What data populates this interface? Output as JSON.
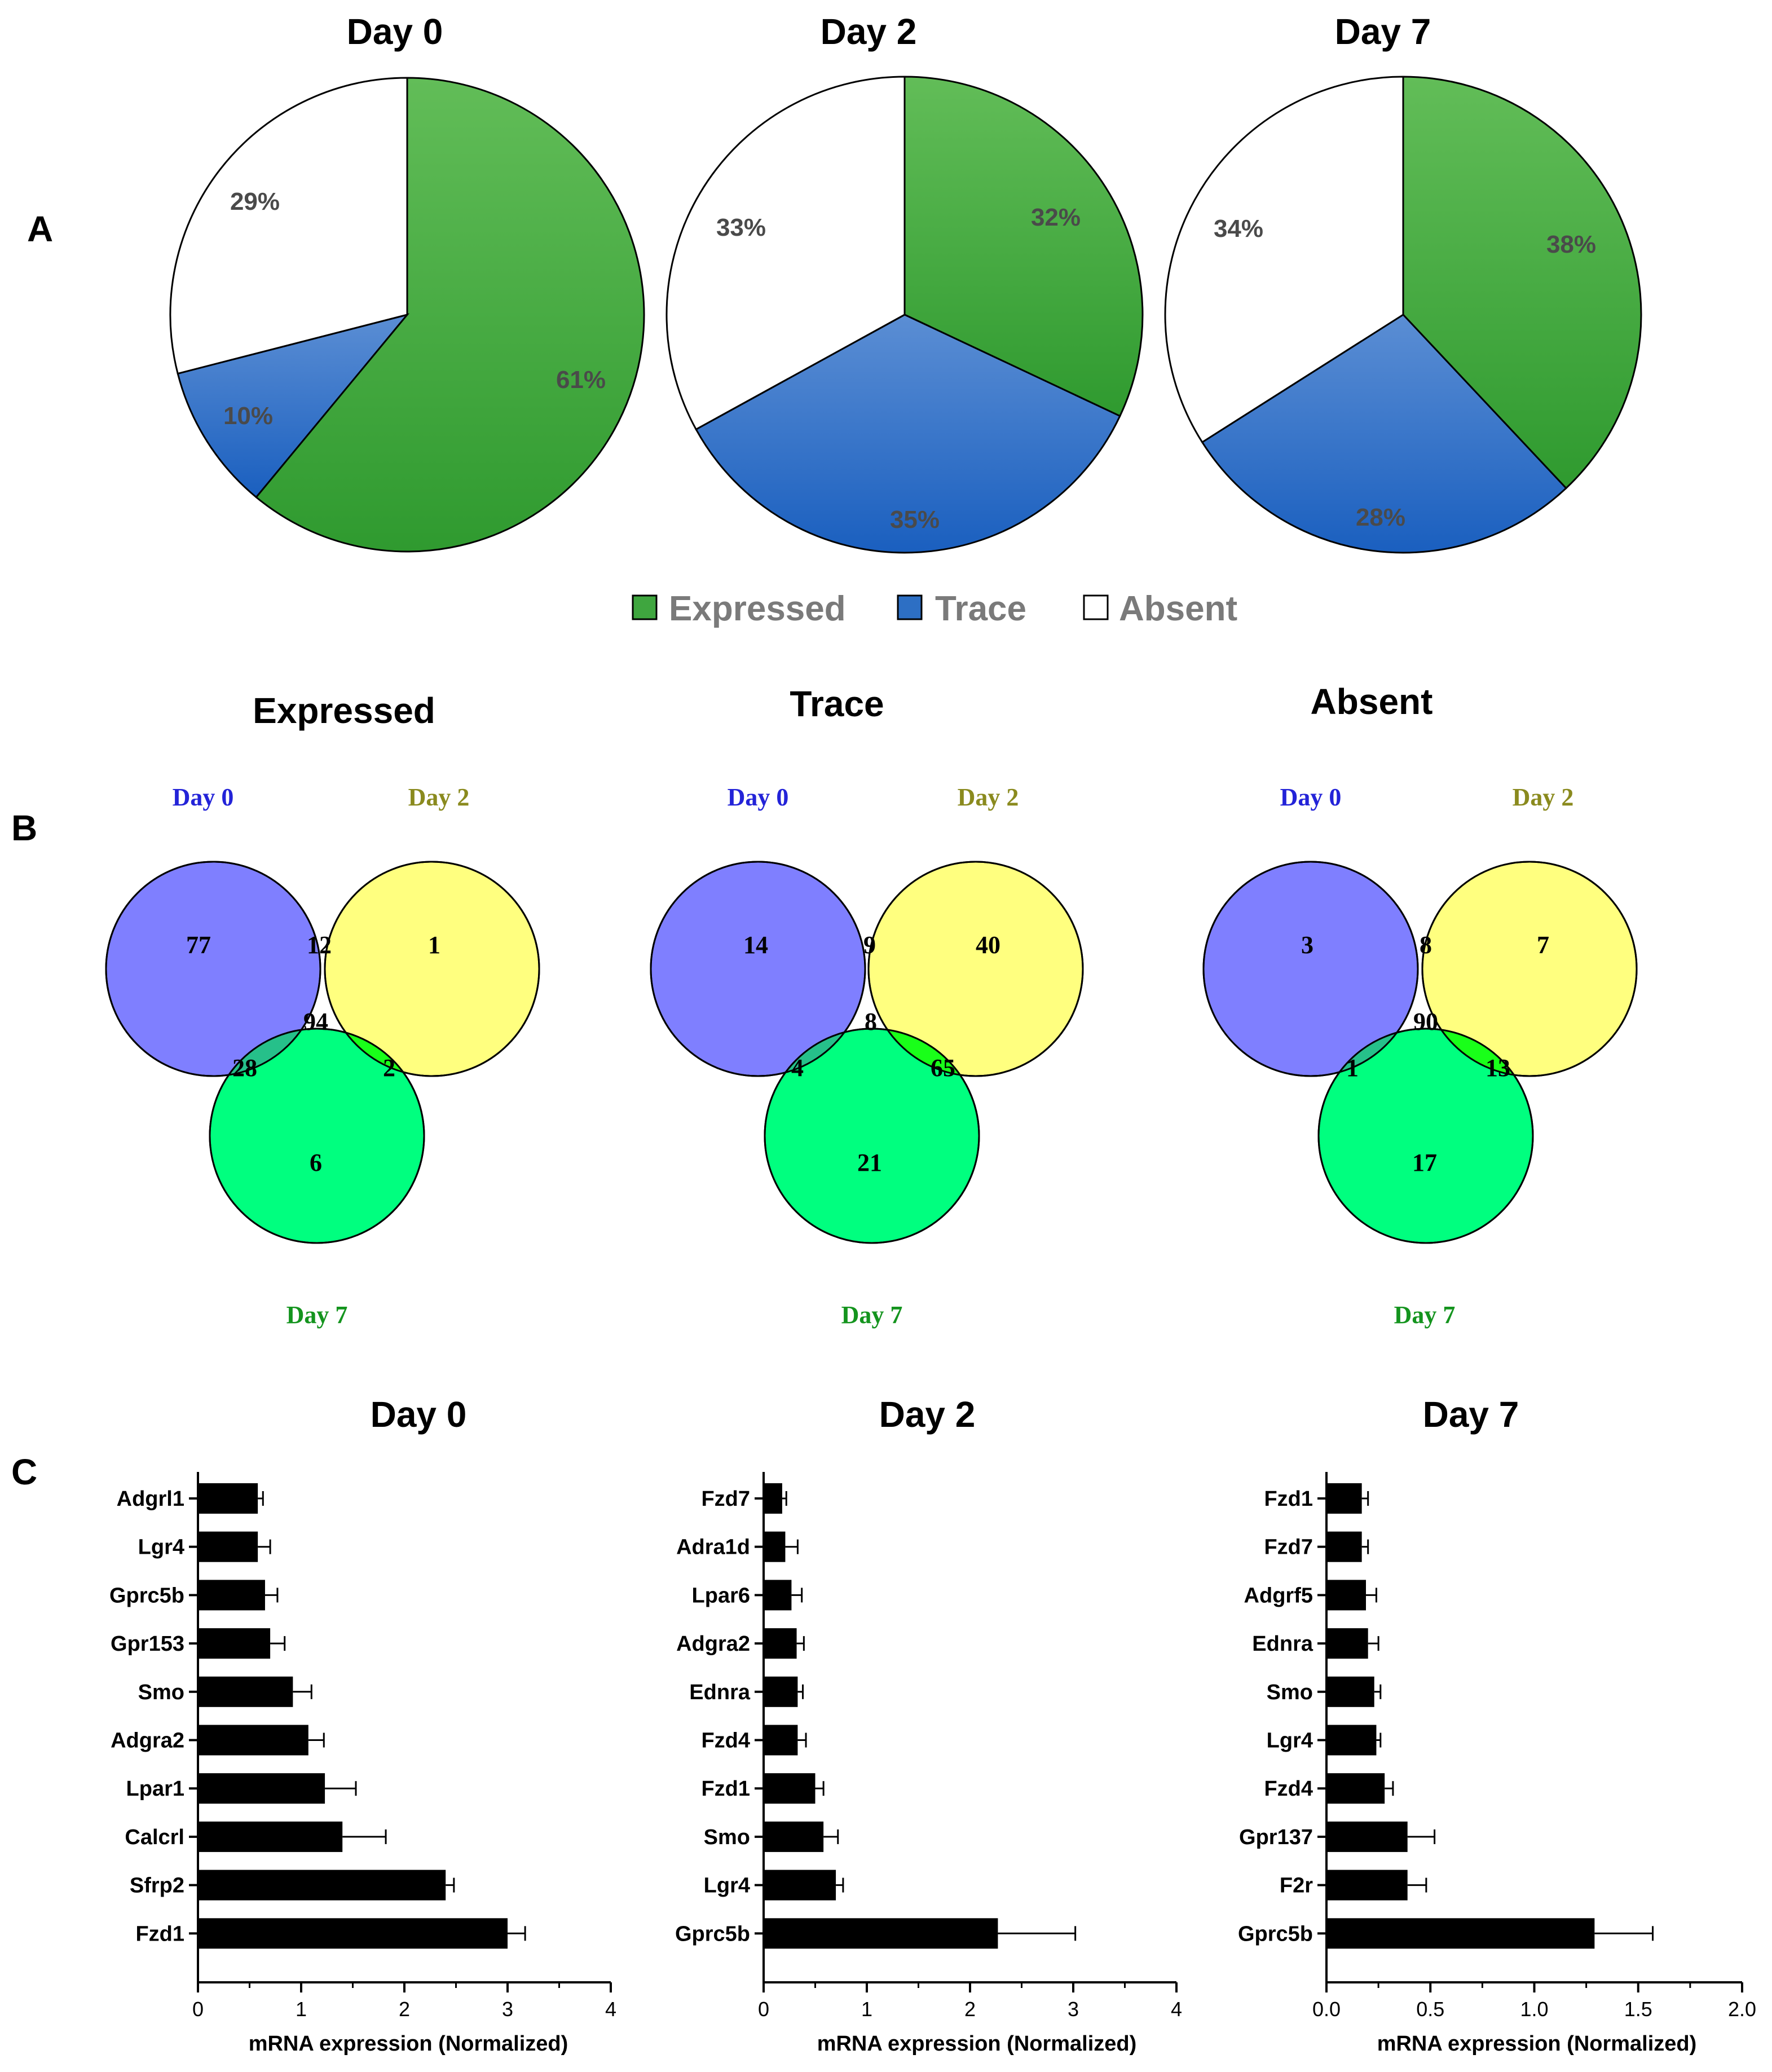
{
  "panels": {
    "a": "A",
    "b": "B",
    "c": "C"
  },
  "legend": {
    "items": [
      {
        "label": "Expressed",
        "color": "#3fa63f"
      },
      {
        "label": "Trace",
        "color": "#2d6fc4"
      },
      {
        "label": "Absent",
        "color": "#ffffff"
      }
    ]
  },
  "chart_data": [
    {
      "type": "pie",
      "title": "Day 0",
      "slices": [
        {
          "label": "Expressed",
          "value": 61,
          "text": "61%"
        },
        {
          "label": "Trace",
          "value": 10,
          "text": "10%"
        },
        {
          "label": "Absent",
          "value": 29,
          "text": "29%"
        }
      ]
    },
    {
      "type": "pie",
      "title": "Day 2",
      "slices": [
        {
          "label": "Expressed",
          "value": 32,
          "text": "32%"
        },
        {
          "label": "Trace",
          "value": 35,
          "text": "35%"
        },
        {
          "label": "Absent",
          "value": 33,
          "text": "33%"
        }
      ]
    },
    {
      "type": "pie",
      "title": "Day 7",
      "slices": [
        {
          "label": "Expressed",
          "value": 38,
          "text": "38%"
        },
        {
          "label": "Trace",
          "value": 28,
          "text": "28%"
        },
        {
          "label": "Absent",
          "value": 34,
          "text": "34%"
        }
      ]
    },
    {
      "type": "venn",
      "title": "Expressed",
      "sets": [
        {
          "name": "Day 0",
          "color": "#7f7fff",
          "text_color": "#2323d8"
        },
        {
          "name": "Day 2",
          "color": "#ffff7f",
          "text_color": "#8a8a1e"
        },
        {
          "name": "Day 7",
          "color": "#00ff7f",
          "text_color": "#14941e"
        }
      ],
      "regions": {
        "only_0": 77,
        "only_2": 1,
        "only_7": 6,
        "d0_d2": 12,
        "d0_d7": 28,
        "d2_d7": 2,
        "all": 94
      }
    },
    {
      "type": "venn",
      "title": "Trace",
      "sets": [
        {
          "name": "Day 0",
          "color": "#7f7fff",
          "text_color": "#2323d8"
        },
        {
          "name": "Day 2",
          "color": "#ffff7f",
          "text_color": "#8a8a1e"
        },
        {
          "name": "Day 7",
          "color": "#00ff7f",
          "text_color": "#14941e"
        }
      ],
      "regions": {
        "only_0": 14,
        "only_2": 40,
        "only_7": 21,
        "d0_d2": 9,
        "d0_d7": 4,
        "d2_d7": 65,
        "all": 8
      }
    },
    {
      "type": "venn",
      "title": "Absent",
      "sets": [
        {
          "name": "Day 0",
          "color": "#7f7fff",
          "text_color": "#2323d8"
        },
        {
          "name": "Day 2",
          "color": "#ffff7f",
          "text_color": "#8a8a1e"
        },
        {
          "name": "Day 7",
          "color": "#00ff7f",
          "text_color": "#14941e"
        }
      ],
      "regions": {
        "only_0": 3,
        "only_2": 7,
        "only_7": 17,
        "d0_d2": 8,
        "d0_d7": 1,
        "d2_d7": 13,
        "all": 90
      }
    },
    {
      "type": "bar",
      "title": "Day 0",
      "orientation": "horizontal",
      "categories": [
        "Adgrl1",
        "Lgr4",
        "Gprc5b",
        "Gpr153",
        "Smo",
        "Adgra2",
        "Lpar1",
        "Calcrl",
        "Sfrp2",
        "Fzd1"
      ],
      "values": [
        0.58,
        0.58,
        0.65,
        0.7,
        0.92,
        1.07,
        1.23,
        1.4,
        2.4,
        3.0
      ],
      "errors": [
        0.05,
        0.12,
        0.12,
        0.14,
        0.18,
        0.15,
        0.3,
        0.42,
        0.08,
        0.17
      ],
      "xlabel": "mRNA expression (Normalized)",
      "xlim": [
        0,
        4
      ],
      "ticks": [
        0,
        1,
        2,
        3,
        4
      ],
      "tick_labels": [
        "0",
        "1",
        "2",
        "3",
        "4"
      ]
    },
    {
      "type": "bar",
      "title": "Day 2",
      "orientation": "horizontal",
      "categories": [
        "Fzd7",
        "Adra1d",
        "Lpar6",
        "Adgra2",
        "Ednra",
        "Fzd4",
        "Fzd1",
        "Smo",
        "Lgr4",
        "Gprc5b"
      ],
      "values": [
        0.18,
        0.21,
        0.27,
        0.32,
        0.33,
        0.33,
        0.5,
        0.58,
        0.7,
        2.27
      ],
      "errors": [
        0.04,
        0.12,
        0.1,
        0.07,
        0.05,
        0.08,
        0.08,
        0.14,
        0.07,
        0.75
      ],
      "xlabel": "mRNA expression (Normalized)",
      "xlim": [
        0,
        4
      ],
      "ticks": [
        0,
        1,
        2,
        3,
        4
      ],
      "tick_labels": [
        "0",
        "1",
        "2",
        "3",
        "4"
      ]
    },
    {
      "type": "bar",
      "title": "Day 7",
      "orientation": "horizontal",
      "categories": [
        "Fzd1",
        "Fzd7",
        "Adgrf5",
        "Ednra",
        "Smo",
        "Lgr4",
        "Fzd4",
        "Gpr137",
        "F2r",
        "Gprc5b"
      ],
      "values": [
        0.17,
        0.17,
        0.19,
        0.2,
        0.23,
        0.24,
        0.28,
        0.39,
        0.39,
        1.29
      ],
      "errors": [
        0.03,
        0.03,
        0.05,
        0.05,
        0.03,
        0.02,
        0.04,
        0.13,
        0.09,
        0.28
      ],
      "xlabel": "mRNA expression (Normalized)",
      "xlim": [
        0,
        2
      ],
      "ticks": [
        0,
        0.5,
        1,
        1.5,
        2
      ],
      "tick_labels": [
        "0.0",
        "0.5",
        "1.0",
        "1.5",
        "2.0"
      ]
    }
  ]
}
